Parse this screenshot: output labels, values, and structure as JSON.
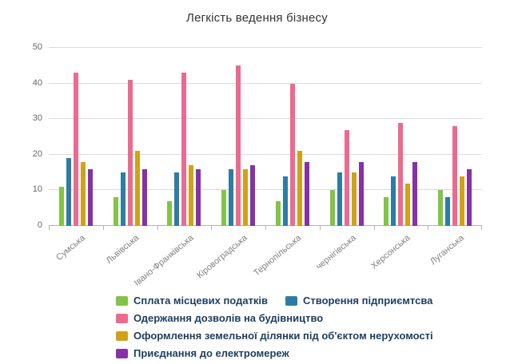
{
  "chart_data": {
    "type": "bar",
    "title": "Легкість ведення бізнесу",
    "categories": [
      "Сумська",
      "Львівська",
      "Івано-Франківська",
      "Кіровоградська",
      "Тернопільська",
      "чернігівська",
      "Херсонська",
      "Луганська"
    ],
    "series": [
      {
        "name": "Сплата місцевих податків",
        "color": "#82c446",
        "values": [
          11,
          8,
          7,
          10,
          7,
          10,
          8,
          10
        ]
      },
      {
        "name": "Створення підприємтсва",
        "color": "#2d7ca6",
        "values": [
          19,
          15,
          15,
          16,
          14,
          15,
          14,
          8
        ]
      },
      {
        "name": "Одержання дозволів на будівництво",
        "color": "#ec6a90",
        "values": [
          43,
          41,
          43,
          45,
          40,
          27,
          29,
          28
        ]
      },
      {
        "name": "Оформлення земельної ділянки під об'єктом нерухомості",
        "color": "#cfa217",
        "values": [
          18,
          21,
          17,
          16,
          21,
          15,
          12,
          14
        ]
      },
      {
        "name": "Приєднання до електромереж",
        "color": "#8531a8",
        "values": [
          16,
          16,
          16,
          17,
          18,
          18,
          18,
          16
        ]
      }
    ],
    "ylim": [
      0,
      50
    ],
    "yticks": [
      0,
      10,
      20,
      30,
      40,
      50
    ],
    "grid": true,
    "legend_position": "bottom"
  }
}
